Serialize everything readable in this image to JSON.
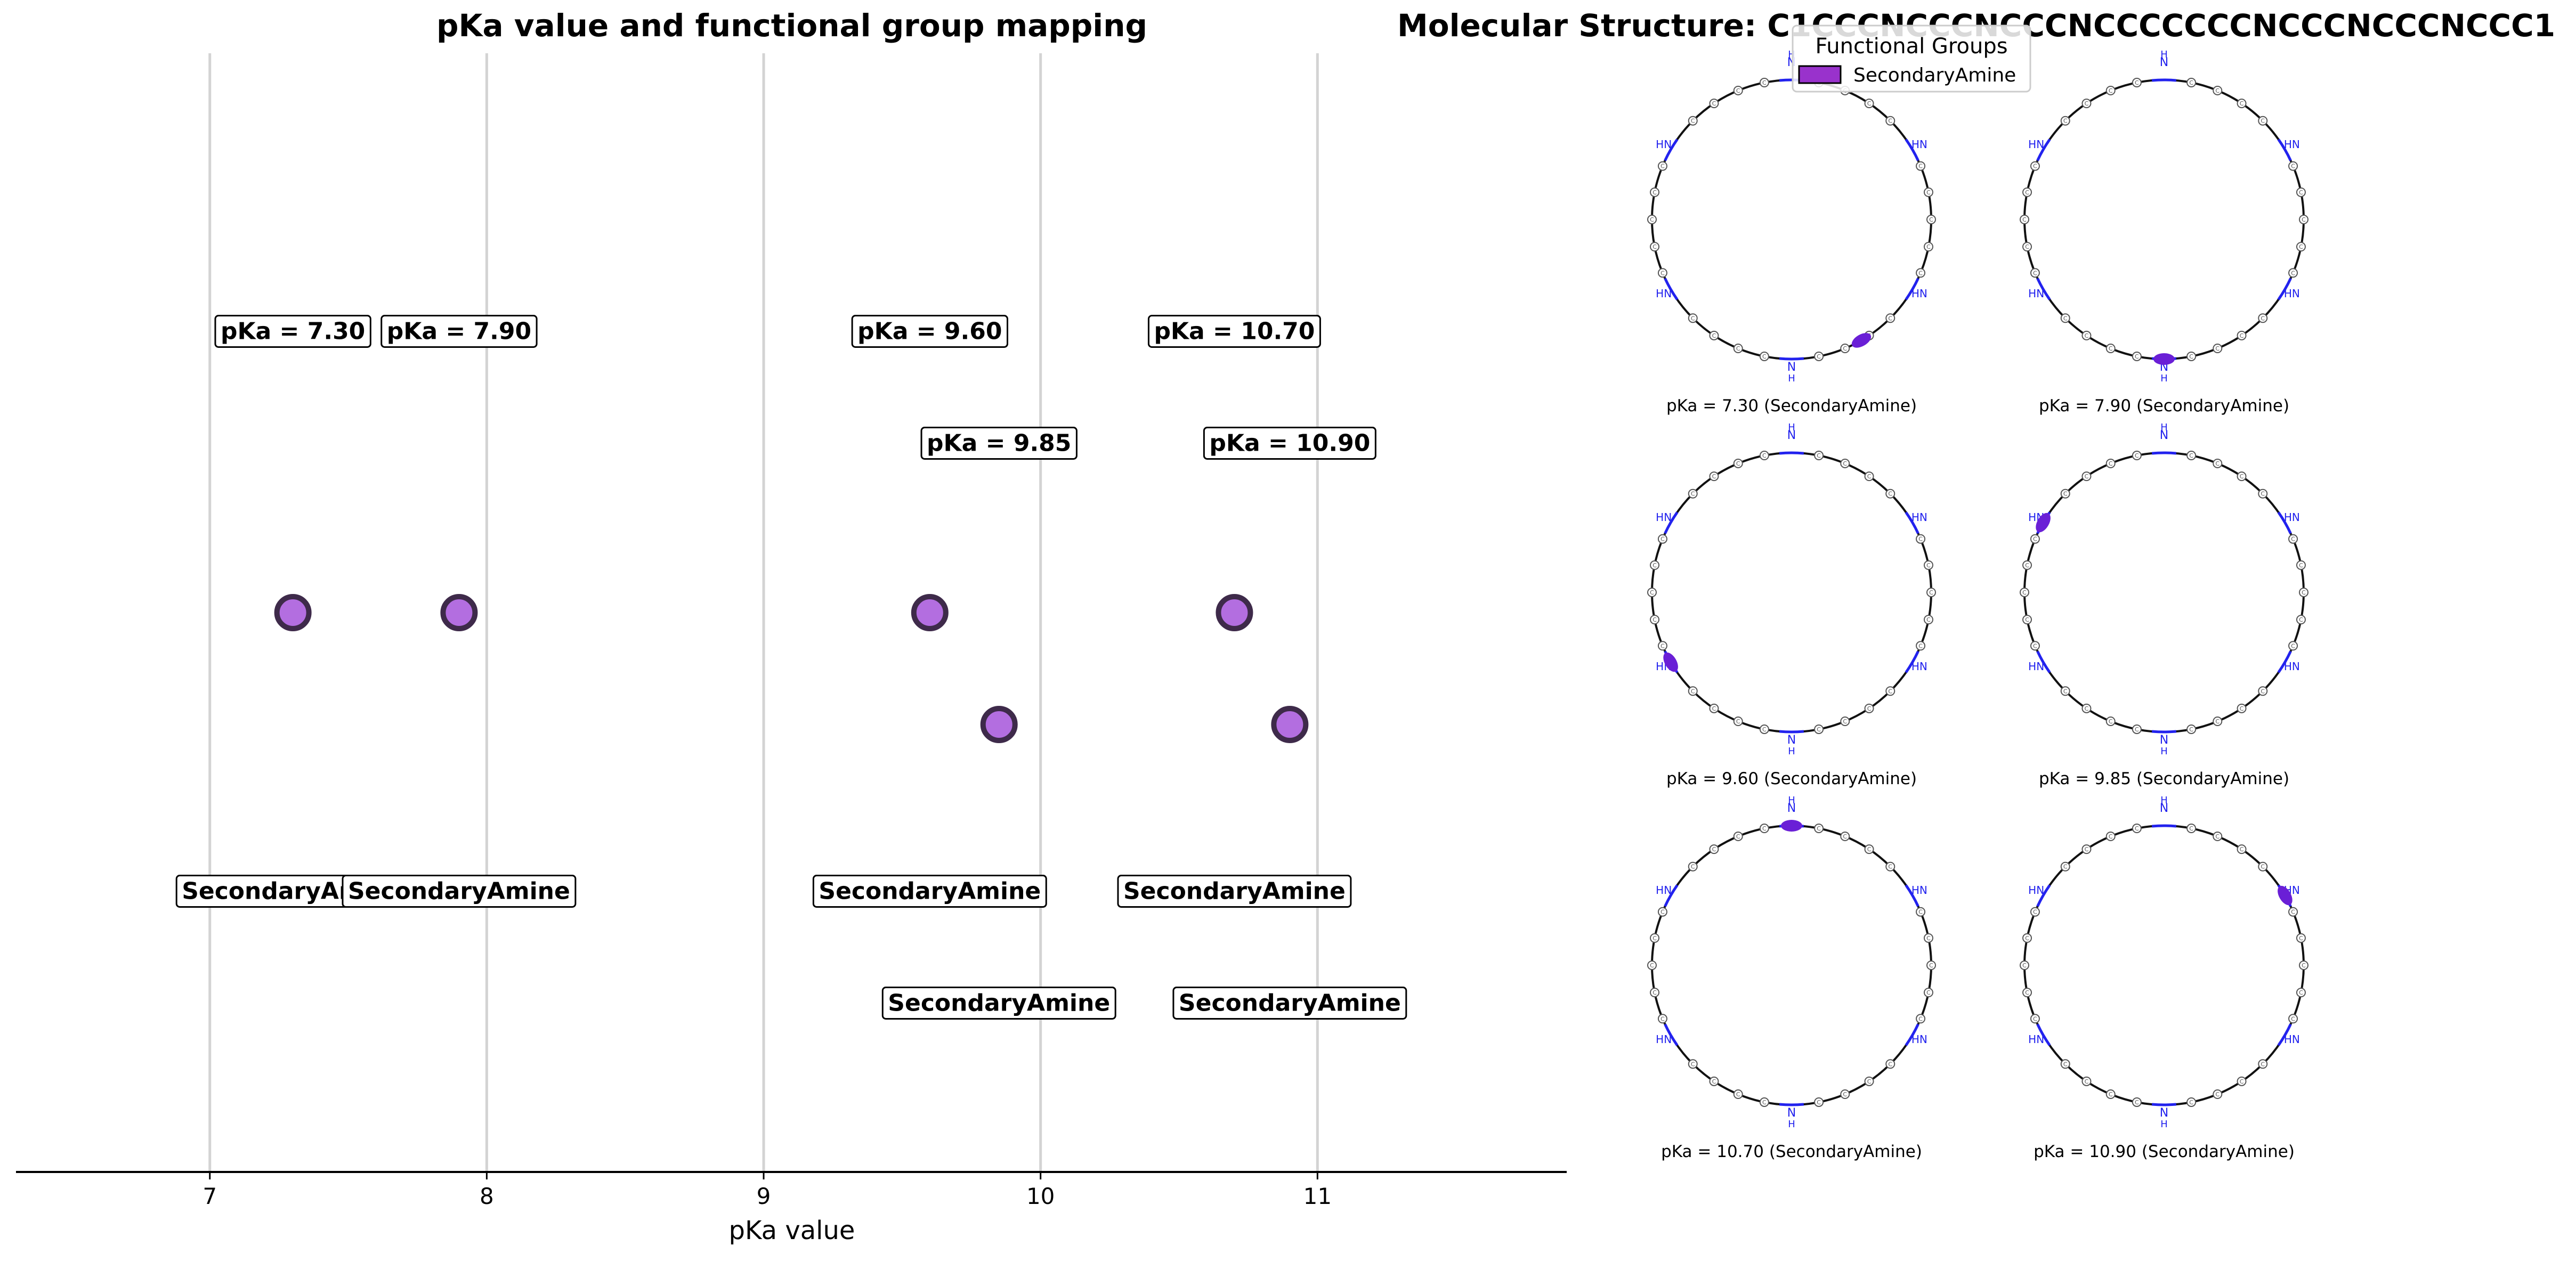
{
  "left_panel": {
    "title": "pKa value and functional group mapping",
    "xlabel": "pKa value"
  },
  "right_panel": {
    "title": "Molecular Structure: C1CCCNCCCNCCCNCCCCCCCNCCCNCCCNCCC1",
    "legend": {
      "title": "Functional Groups",
      "entries": [
        "SecondaryAmine"
      ]
    },
    "amine_label": "HN",
    "amine_h_label": "H",
    "carbon_label": "C",
    "panels": [
      {
        "caption": "pKa = 7.30 (SecondaryAmine)",
        "highlight_angle_deg": 300
      },
      {
        "caption": "pKa = 7.90 (SecondaryAmine)",
        "highlight_angle_deg": 270
      },
      {
        "caption": "pKa = 9.60 (SecondaryAmine)",
        "highlight_angle_deg": 210
      },
      {
        "caption": "pKa = 9.85 (SecondaryAmine)",
        "highlight_angle_deg": 150
      },
      {
        "caption": "pKa = 10.70 (SecondaryAmine)",
        "highlight_angle_deg": 90
      },
      {
        "caption": "pKa = 10.90 (SecondaryAmine)",
        "highlight_angle_deg": 30
      }
    ]
  },
  "chart_data": {
    "type": "scatter",
    "title": "pKa value and functional group mapping",
    "xlabel": "pKa value",
    "ylabel": "",
    "xlim": [
      6.3,
      11.9
    ],
    "xticks": [
      7,
      8,
      9,
      10,
      11
    ],
    "grid": "vertical at ticks",
    "marker_color": "#b36ee0",
    "marker_edge_color": "#3e2a4a",
    "points": [
      {
        "x": 7.3,
        "row": 0,
        "pka_label": "pKa = 7.30",
        "group": "SecondaryAmine"
      },
      {
        "x": 7.9,
        "row": 0,
        "pka_label": "pKa = 7.90",
        "group": "SecondaryAmine"
      },
      {
        "x": 9.6,
        "row": 0,
        "pka_label": "pKa = 9.60",
        "group": "SecondaryAmine"
      },
      {
        "x": 9.85,
        "row": 1,
        "pka_label": "pKa = 9.85",
        "group": "SecondaryAmine"
      },
      {
        "x": 10.7,
        "row": 0,
        "pka_label": "pKa = 10.70",
        "group": "SecondaryAmine"
      },
      {
        "x": 10.9,
        "row": 1,
        "pka_label": "pKa = 10.90",
        "group": "SecondaryAmine"
      }
    ]
  },
  "colors": {
    "legend_patch": "#9932cc",
    "highlight": "#6a1fd6",
    "ring_bond": "#111111",
    "nitrogen": "#2222ee",
    "grid": "#d3d3d3"
  }
}
